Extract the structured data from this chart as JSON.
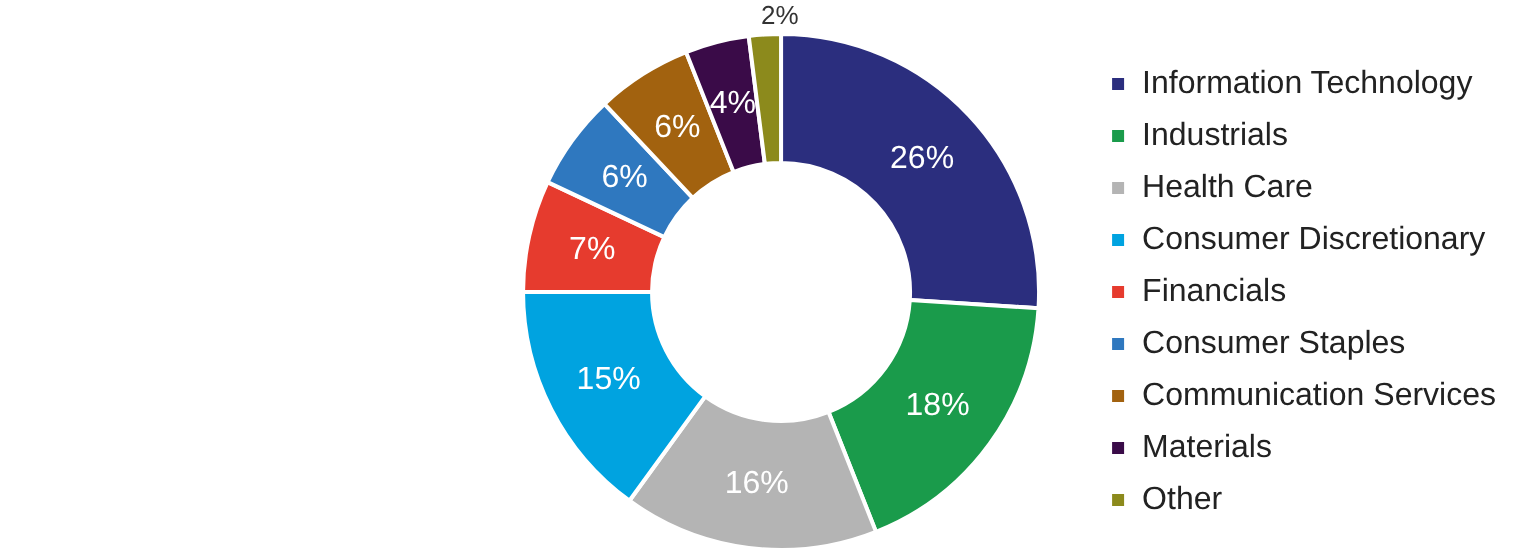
{
  "chart_data": {
    "type": "donut",
    "categories": [
      "Information Technology",
      "Industrials",
      "Health Care",
      "Consumer Discretionary",
      "Financials",
      "Consumer Staples",
      "Communication Services",
      "Materials",
      "Other"
    ],
    "values": [
      26,
      18,
      16,
      15,
      7,
      6,
      6,
      4,
      2
    ],
    "value_labels": [
      "26%",
      "18%",
      "16%",
      "15%",
      "7%",
      "6%",
      "6%",
      "4%",
      "2%"
    ],
    "colors": [
      "#2b2e7e",
      "#1a9b4b",
      "#b4b4b4",
      "#00a3e0",
      "#e63b2e",
      "#2f78bf",
      "#a2620f",
      "#3a0b48",
      "#8c8a1c"
    ],
    "legend": "right"
  }
}
